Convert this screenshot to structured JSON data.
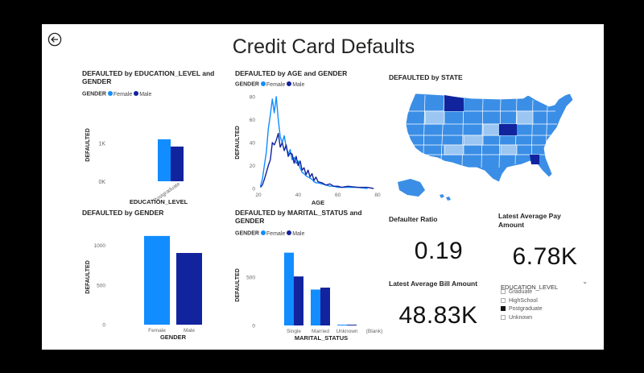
{
  "page": {
    "title": "Credit Card Defaults"
  },
  "colors": {
    "female": "#118dff",
    "male": "#12239e",
    "map_fill": "#3a8ee6",
    "map_light": "#9cc6f2"
  },
  "legend": {
    "title": "GENDER",
    "female": "Female",
    "male": "Male"
  },
  "edu_chart": {
    "title": "DEFAULTED by EDUCATION_LEVEL and GENDER",
    "chart_data": {
      "type": "bar",
      "title": "DEFAULTED by EDUCATION_LEVEL and GENDER",
      "xlabel": "EDUCATION_LEVEL",
      "ylabel": "DEFAULTED",
      "categories": [
        "Postgraduate"
      ],
      "series": [
        {
          "name": "Female",
          "values": [
            1100
          ]
        },
        {
          "name": "Male",
          "values": [
            910
          ]
        }
      ],
      "yticks": [
        "0K",
        "1K"
      ],
      "ylim": [
        0,
        1900
      ]
    }
  },
  "age_chart": {
    "title": "DEFAULTED by AGE and GENDER",
    "chart_data": {
      "type": "line",
      "title": "DEFAULTED by AGE and GENDER",
      "xlabel": "AGE",
      "ylabel": "DEFAULTED",
      "xlim": [
        20,
        80
      ],
      "ylim": [
        0,
        80
      ],
      "xticks": [
        20,
        40,
        60,
        80
      ],
      "yticks": [
        0,
        20,
        40,
        60,
        80
      ],
      "series": [
        {
          "name": "Female",
          "points": [
            [
              21,
              2
            ],
            [
              22,
              8
            ],
            [
              23,
              20
            ],
            [
              24,
              32
            ],
            [
              25,
              52
            ],
            [
              26,
              64
            ],
            [
              27,
              78
            ],
            [
              28,
              66
            ],
            [
              29,
              80
            ],
            [
              30,
              60
            ],
            [
              31,
              45
            ],
            [
              32,
              40
            ],
            [
              33,
              46
            ],
            [
              34,
              36
            ],
            [
              35,
              30
            ],
            [
              36,
              34
            ],
            [
              37,
              25
            ],
            [
              38,
              27
            ],
            [
              39,
              22
            ],
            [
              40,
              24
            ],
            [
              41,
              18
            ],
            [
              42,
              14
            ],
            [
              43,
              13
            ],
            [
              44,
              11
            ],
            [
              45,
              10
            ],
            [
              46,
              9
            ],
            [
              47,
              8
            ],
            [
              48,
              6
            ],
            [
              49,
              5
            ],
            [
              50,
              5
            ],
            [
              52,
              4
            ],
            [
              54,
              3
            ],
            [
              56,
              2
            ],
            [
              58,
              2
            ],
            [
              60,
              1
            ],
            [
              65,
              1
            ],
            [
              70,
              1
            ],
            [
              75,
              0
            ]
          ]
        },
        {
          "name": "Male",
          "points": [
            [
              21,
              1
            ],
            [
              22,
              3
            ],
            [
              23,
              8
            ],
            [
              24,
              14
            ],
            [
              25,
              20
            ],
            [
              26,
              25
            ],
            [
              27,
              40
            ],
            [
              28,
              38
            ],
            [
              29,
              42
            ],
            [
              30,
              48
            ],
            [
              31,
              36
            ],
            [
              32,
              40
            ],
            [
              33,
              33
            ],
            [
              34,
              38
            ],
            [
              35,
              28
            ],
            [
              36,
              31
            ],
            [
              37,
              30
            ],
            [
              38,
              22
            ],
            [
              39,
              28
            ],
            [
              40,
              20
            ],
            [
              41,
              24
            ],
            [
              42,
              16
            ],
            [
              43,
              18
            ],
            [
              44,
              12
            ],
            [
              45,
              16
            ],
            [
              46,
              10
            ],
            [
              47,
              13
            ],
            [
              48,
              7
            ],
            [
              49,
              10
            ],
            [
              50,
              6
            ],
            [
              52,
              5
            ],
            [
              54,
              3
            ],
            [
              56,
              4
            ],
            [
              58,
              2
            ],
            [
              60,
              2
            ],
            [
              62,
              1
            ],
            [
              65,
              2
            ],
            [
              70,
              1
            ],
            [
              75,
              1
            ],
            [
              78,
              0
            ]
          ]
        }
      ]
    }
  },
  "map": {
    "title": "DEFAULTED by STATE"
  },
  "gender_chart": {
    "title": "DEFAULTED by GENDER",
    "chart_data": {
      "type": "bar",
      "title": "DEFAULTED by GENDER",
      "xlabel": "GENDER",
      "ylabel": "DEFAULTED",
      "categories": [
        "Female",
        "Male"
      ],
      "values": [
        1120,
        905
      ],
      "yticks": [
        0,
        500,
        1000
      ],
      "ylim": [
        0,
        1200
      ]
    }
  },
  "marital_chart": {
    "title": "DEFAULTED by MARITAL_STATUS and GENDER",
    "chart_data": {
      "type": "bar",
      "title": "DEFAULTED by MARITAL_STATUS and GENDER",
      "xlabel": "MARITAL_STATUS",
      "ylabel": "DEFAULTED",
      "categories": [
        "Single",
        "Married",
        "Unknown",
        "(Blank)"
      ],
      "series": [
        {
          "name": "Female",
          "values": [
            750,
            370,
            6,
            0
          ]
        },
        {
          "name": "Male",
          "values": [
            505,
            390,
            6,
            0
          ]
        }
      ],
      "yticks": [
        0,
        500
      ],
      "ylim": [
        0,
        830
      ]
    }
  },
  "kpis": {
    "defaulter_ratio": {
      "label": "Defaulter Ratio",
      "value": "0.19"
    },
    "latest_pay": {
      "label": "Latest Average Pay Amount",
      "value": "6.78K"
    },
    "latest_bill": {
      "label": "Latest Average Bill Amount",
      "value": "48.83K"
    }
  },
  "slicer": {
    "title": "EDUCATION_LEVEL",
    "items": [
      {
        "label": "Graduate",
        "checked": false
      },
      {
        "label": "HighSchool",
        "checked": false
      },
      {
        "label": "Postgraduate",
        "checked": true
      },
      {
        "label": "Unknown",
        "checked": false
      }
    ]
  }
}
